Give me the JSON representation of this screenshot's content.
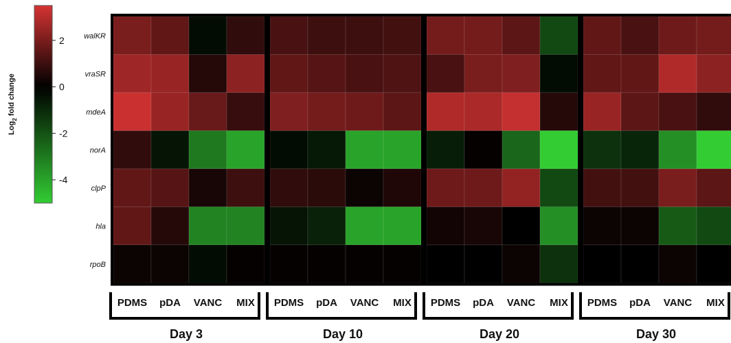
{
  "chart_data": {
    "type": "heatmap",
    "colorbar": {
      "label_main": "Log",
      "label_sub": "2",
      "label_rest": " fold change",
      "ticks": [
        "2",
        "0",
        "-2",
        "-4"
      ],
      "tick_values": [
        2,
        0,
        -2,
        -4
      ],
      "range": [
        -5,
        3.5
      ],
      "colors": {
        "high": "#d63333",
        "mid": "#000000",
        "low": "#33cc33"
      }
    },
    "genes": [
      "walKR",
      "vraSR",
      "mdeA",
      "norA",
      "clpP",
      "hla",
      "rpoB"
    ],
    "conditions": [
      "PDMS",
      "pDA",
      "VANC",
      "MIX"
    ],
    "panels": [
      {
        "day": "Day 3",
        "values": [
          [
            2.0,
            1.6,
            -0.3,
            0.8
          ],
          [
            2.6,
            2.5,
            0.6,
            2.3
          ],
          [
            3.3,
            2.5,
            1.7,
            0.9
          ],
          [
            0.8,
            -0.5,
            -3.0,
            -4.0
          ],
          [
            1.6,
            1.4,
            0.4,
            1.0
          ],
          [
            1.6,
            0.6,
            -3.2,
            -3.2
          ],
          [
            0.2,
            0.2,
            -0.3,
            0.1
          ]
        ]
      },
      {
        "day": "Day 10",
        "values": [
          [
            1.2,
            1.0,
            1.0,
            1.1
          ],
          [
            1.6,
            1.4,
            1.2,
            1.3
          ],
          [
            2.1,
            1.9,
            1.8,
            1.5
          ],
          [
            -0.3,
            -0.6,
            -4.0,
            -4.0
          ],
          [
            0.8,
            0.7,
            0.2,
            0.5
          ],
          [
            -0.5,
            -0.8,
            -4.0,
            -4.0
          ],
          [
            0.1,
            0.1,
            0.1,
            0.1
          ]
        ]
      },
      {
        "day": "Day 20",
        "values": [
          [
            1.9,
            1.9,
            1.5,
            -1.8
          ],
          [
            1.2,
            2.0,
            2.1,
            -0.3
          ],
          [
            2.9,
            2.8,
            3.2,
            0.6
          ],
          [
            -0.7,
            0.1,
            -2.5,
            -5.0
          ],
          [
            1.8,
            1.8,
            2.4,
            -1.8
          ],
          [
            0.3,
            0.4,
            0.0,
            -3.5
          ],
          [
            0.0,
            0.0,
            0.2,
            -1.2
          ]
        ]
      },
      {
        "day": "Day 30",
        "values": [
          [
            1.6,
            1.2,
            1.8,
            1.9
          ],
          [
            1.6,
            1.6,
            2.9,
            2.3
          ],
          [
            2.5,
            1.5,
            1.2,
            0.8
          ],
          [
            -1.2,
            -0.9,
            -3.5,
            -5.0
          ],
          [
            1.1,
            1.1,
            2.0,
            1.5
          ],
          [
            0.2,
            0.2,
            -2.2,
            -1.8
          ],
          [
            0.0,
            0.0,
            0.2,
            0.0
          ]
        ]
      }
    ]
  }
}
